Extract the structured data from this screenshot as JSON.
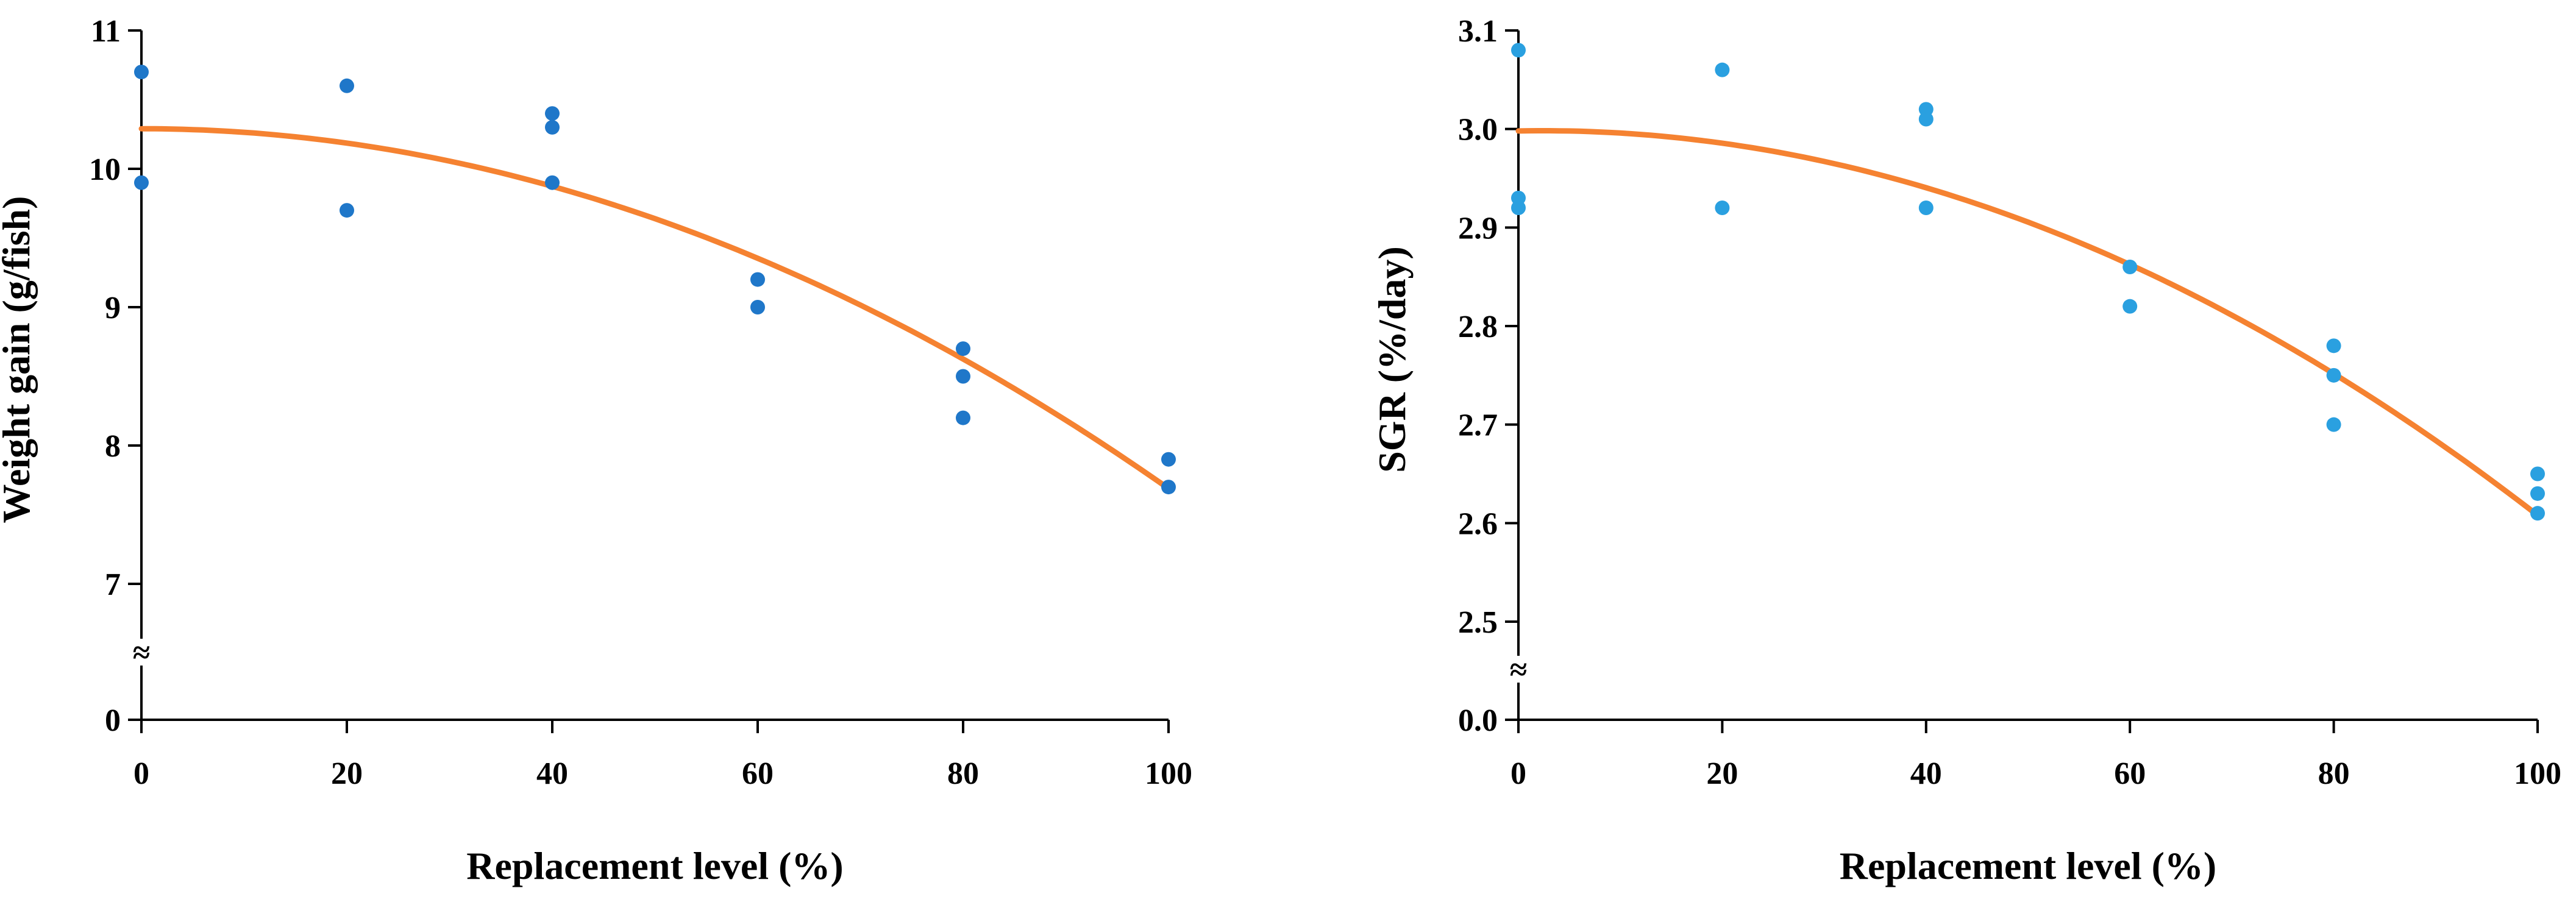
{
  "chart_data": [
    {
      "type": "scatter",
      "title": "",
      "xlabel": "Replacement level (%)",
      "ylabel": "Weight gain (g/fish)",
      "xlim": [
        0,
        100
      ],
      "ylim_display": [
        7,
        11
      ],
      "axis_break": true,
      "x_ticks": [
        "0",
        "20",
        "40",
        "60",
        "80",
        "100"
      ],
      "y_ticks": [
        {
          "value": 7,
          "label": "7"
        },
        {
          "value": 8,
          "label": "8"
        },
        {
          "value": 9,
          "label": "9"
        },
        {
          "value": 10,
          "label": "10"
        },
        {
          "value": 11,
          "label": "11"
        }
      ],
      "y_break_label": "0",
      "break_symbol": "≈",
      "point_color": "#1f77c9",
      "curve_color": "#f58231",
      "points": [
        {
          "x": 0,
          "y": 10.7
        },
        {
          "x": 0,
          "y": 9.9
        },
        {
          "x": 20,
          "y": 10.6
        },
        {
          "x": 20,
          "y": 9.7
        },
        {
          "x": 40,
          "y": 10.4
        },
        {
          "x": 40,
          "y": 10.3
        },
        {
          "x": 40,
          "y": 9.9
        },
        {
          "x": 60,
          "y": 9.2
        },
        {
          "x": 60,
          "y": 9.0
        },
        {
          "x": 80,
          "y": 8.7
        },
        {
          "x": 80,
          "y": 8.5
        },
        {
          "x": 80,
          "y": 8.2
        },
        {
          "x": 100,
          "y": 7.9
        },
        {
          "x": 100,
          "y": 7.7
        }
      ],
      "fit_curve": {
        "type": "quadratic",
        "a": 10.29,
        "b": -1e-05,
        "c": -0.00026
      }
    },
    {
      "type": "scatter",
      "title": "",
      "xlabel": "Replacement level (%)",
      "ylabel": "SGR (%/day)",
      "xlim": [
        0,
        100
      ],
      "ylim_display": [
        2.5,
        3.1
      ],
      "axis_break": true,
      "x_ticks": [
        "0",
        "20",
        "40",
        "60",
        "80",
        "100"
      ],
      "y_ticks": [
        {
          "value": 2.5,
          "label": "2.5"
        },
        {
          "value": 2.6,
          "label": "2.6"
        },
        {
          "value": 2.7,
          "label": "2.7"
        },
        {
          "value": 2.8,
          "label": "2.8"
        },
        {
          "value": 2.9,
          "label": "2.9"
        },
        {
          "value": 3.0,
          "label": "3.0"
        },
        {
          "value": 3.1,
          "label": "3.1"
        }
      ],
      "y_break_label": "0.0",
      "break_symbol": "≈",
      "point_color": "#2aa0e0",
      "curve_color": "#f58231",
      "points": [
        {
          "x": 0,
          "y": 3.08
        },
        {
          "x": 0,
          "y": 2.93
        },
        {
          "x": 0,
          "y": 2.92
        },
        {
          "x": 20,
          "y": 3.06
        },
        {
          "x": 20,
          "y": 2.92
        },
        {
          "x": 40,
          "y": 3.02
        },
        {
          "x": 40,
          "y": 3.01
        },
        {
          "x": 40,
          "y": 2.92
        },
        {
          "x": 60,
          "y": 2.86
        },
        {
          "x": 60,
          "y": 2.82
        },
        {
          "x": 80,
          "y": 2.78
        },
        {
          "x": 80,
          "y": 2.75
        },
        {
          "x": 80,
          "y": 2.7
        },
        {
          "x": 100,
          "y": 2.65
        },
        {
          "x": 100,
          "y": 2.63
        },
        {
          "x": 100,
          "y": 2.61
        }
      ],
      "fit_curve": {
        "type": "quadratic",
        "a": 2.998,
        "b": 0.0002,
        "c": -4.1e-05
      }
    }
  ]
}
